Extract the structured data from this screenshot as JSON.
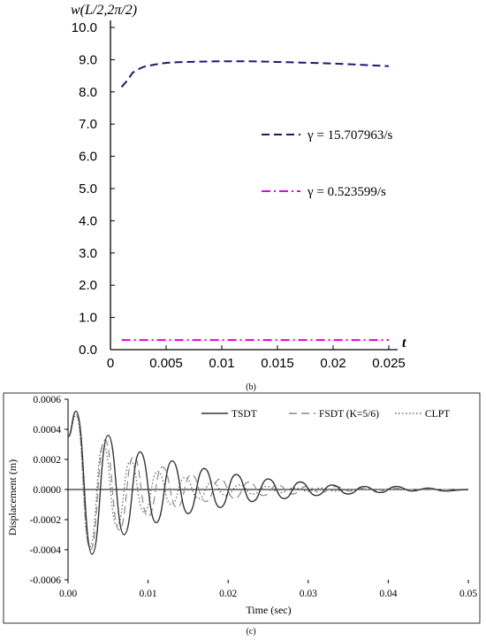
{
  "chart_data": [
    {
      "type": "line",
      "panel": "(b)",
      "title": "",
      "ylabel": "w(L/2,2π/2)",
      "xlabel": "t",
      "xlim": [
        0,
        0.025
      ],
      "ylim": [
        0,
        10
      ],
      "x_ticks": [
        "0",
        "0.005",
        "0.01",
        "0.015",
        "0.02",
        "0.025"
      ],
      "y_ticks": [
        "0.0",
        "1.0",
        "2.0",
        "3.0",
        "4.0",
        "5.0",
        "6.0",
        "7.0",
        "8.0",
        "9.0",
        "10.0"
      ],
      "grid": false,
      "legend_position": "center-right",
      "series": [
        {
          "name": "γ = 15.707963/s",
          "color": "#1a1a6e",
          "style": "dashed",
          "x": [
            0.001,
            0.0015,
            0.002,
            0.0025,
            0.003,
            0.004,
            0.005,
            0.006,
            0.008,
            0.01,
            0.012,
            0.014,
            0.016,
            0.018,
            0.02,
            0.022,
            0.025
          ],
          "y": [
            8.15,
            8.35,
            8.6,
            8.7,
            8.78,
            8.85,
            8.9,
            8.92,
            8.94,
            8.95,
            8.95,
            8.94,
            8.92,
            8.9,
            8.88,
            8.85,
            8.8
          ]
        },
        {
          "name": "γ = 0.523599/s",
          "color": "#e600e6",
          "style": "dashdot",
          "x": [
            0.001,
            0.025
          ],
          "y": [
            0.3,
            0.3
          ]
        }
      ]
    },
    {
      "type": "line",
      "panel": "(c)",
      "title": "",
      "ylabel": "Displacement (m)",
      "xlabel": "Time (sec)",
      "xlim": [
        0,
        0.05
      ],
      "ylim": [
        -0.0006,
        0.0006
      ],
      "x_ticks": [
        "0.00",
        "0.01",
        "0.02",
        "0.03",
        "0.04",
        "0.05"
      ],
      "y_ticks": [
        "-0.0006",
        "-0.0004",
        "-0.0002",
        "0.0000",
        "0.0002",
        "0.0004",
        "0.0006"
      ],
      "grid": false,
      "legend_position": "top",
      "series": [
        {
          "name": "TSDT",
          "color": "#333333",
          "style": "solid",
          "x": [
            0,
            0.001,
            0.003,
            0.005,
            0.007,
            0.009,
            0.011,
            0.013,
            0.015,
            0.017,
            0.019,
            0.021,
            0.023,
            0.025,
            0.027,
            0.029,
            0.031,
            0.033,
            0.035,
            0.037,
            0.039,
            0.041,
            0.043,
            0.045,
            0.047,
            0.05
          ],
          "y": [
            0.00035,
            0.00052,
            -0.00043,
            0.00036,
            -0.0003,
            0.00025,
            -0.00022,
            0.00019,
            -0.00016,
            0.00014,
            -0.00012,
            0.0001,
            -8e-05,
            7e-05,
            -6e-05,
            5e-05,
            -4e-05,
            3e-05,
            -3e-05,
            2e-05,
            -2e-05,
            2e-05,
            -1e-05,
            1e-05,
            -1e-05,
            0.0
          ]
        },
        {
          "name": "FSDT (K=5/6)",
          "color": "#8a8a8a",
          "style": "dashed",
          "x": [
            0,
            0.001,
            0.0028,
            0.0046,
            0.0064,
            0.0082,
            0.01,
            0.0118,
            0.0136,
            0.0154,
            0.0172,
            0.019,
            0.0208,
            0.0226,
            0.0244,
            0.0262,
            0.028,
            0.0298,
            0.0316,
            0.0334,
            0.0352,
            0.037,
            0.0388,
            0.0406,
            0.0424,
            0.0442,
            0.046,
            0.05
          ],
          "y": [
            0.00035,
            0.0005,
            -0.0004,
            0.00033,
            -0.00027,
            0.00022,
            -0.00018,
            0.00015,
            -0.00012,
            0.0001,
            -8e-05,
            7e-05,
            -6e-05,
            5e-05,
            -4e-05,
            3e-05,
            -3e-05,
            2e-05,
            -2e-05,
            2e-05,
            -1e-05,
            1e-05,
            -1e-05,
            1e-05,
            0.0,
            0.0,
            0.0,
            0.0
          ]
        },
        {
          "name": "CLPT",
          "color": "#6b6b6b",
          "style": "dotted",
          "x": [
            0,
            0.001,
            0.0027,
            0.0044,
            0.0061,
            0.0078,
            0.0095,
            0.0112,
            0.0129,
            0.0146,
            0.0163,
            0.018,
            0.0197,
            0.0214,
            0.0231,
            0.0248,
            0.0265,
            0.0282,
            0.0299,
            0.0316,
            0.0333,
            0.035,
            0.0367,
            0.0384,
            0.0401,
            0.045,
            0.05
          ],
          "y": [
            0.00035,
            0.00049,
            -0.00038,
            0.0003,
            -0.00024,
            0.00019,
            -0.00015,
            0.00012,
            -0.0001,
            8e-05,
            -6e-05,
            5e-05,
            -4e-05,
            3e-05,
            -3e-05,
            2e-05,
            -2e-05,
            1e-05,
            -1e-05,
            1e-05,
            -1e-05,
            0.0,
            0.0,
            0.0,
            0.0,
            0.0,
            0.0
          ]
        }
      ]
    }
  ]
}
